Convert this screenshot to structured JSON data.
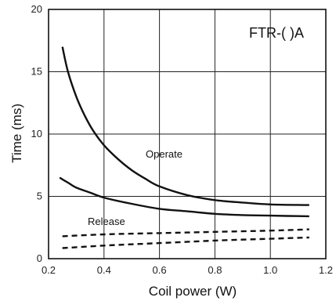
{
  "chart_data": {
    "type": "line",
    "title": "",
    "model_label": "FTR-( )A",
    "xlabel": "Coil power (W)",
    "ylabel": "Time (ms)",
    "xlim": [
      0.2,
      1.2
    ],
    "ylim": [
      0,
      20
    ],
    "xticks": [
      "0.2",
      "0.4",
      "0.6",
      "0.8",
      "1.0",
      "1.2"
    ],
    "yticks": [
      "0",
      "5",
      "10",
      "15",
      "20"
    ],
    "grid": true,
    "annotations": [
      "Operate",
      "Release"
    ],
    "series": [
      {
        "label": "Operate",
        "style": "solid",
        "color": "#111111",
        "x": [
          0.25,
          0.27,
          0.3,
          0.33,
          0.36,
          0.4,
          0.45,
          0.5,
          0.55,
          0.6,
          0.7,
          0.8,
          0.9,
          1.0,
          1.14
        ],
        "y": [
          17.0,
          15.0,
          13.0,
          11.5,
          10.3,
          9.1,
          8.0,
          7.1,
          6.4,
          5.8,
          5.1,
          4.7,
          4.5,
          4.35,
          4.3
        ]
      },
      {
        "label": "Operate",
        "style": "solid",
        "color": "#111111",
        "x": [
          0.24,
          0.27,
          0.3,
          0.35,
          0.4,
          0.5,
          0.6,
          0.7,
          0.8,
          0.9,
          1.0,
          1.14
        ],
        "y": [
          6.5,
          6.1,
          5.7,
          5.3,
          4.9,
          4.4,
          4.0,
          3.8,
          3.6,
          3.5,
          3.45,
          3.4
        ]
      },
      {
        "label": "Release",
        "style": "dashed",
        "color": "#111111",
        "x": [
          0.25,
          0.4,
          0.6,
          0.8,
          1.0,
          1.14
        ],
        "y": [
          1.8,
          1.95,
          2.05,
          2.15,
          2.25,
          2.35
        ]
      },
      {
        "label": "Release",
        "style": "dashed",
        "color": "#111111",
        "x": [
          0.25,
          0.4,
          0.6,
          0.8,
          1.0,
          1.14
        ],
        "y": [
          0.85,
          1.05,
          1.25,
          1.45,
          1.6,
          1.7
        ]
      }
    ]
  }
}
